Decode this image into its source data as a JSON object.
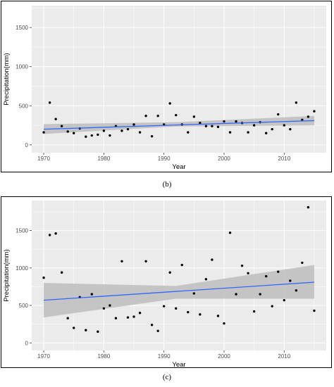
{
  "chart_data": [
    {
      "type": "scatter",
      "caption": "(b)",
      "xlabel": "Year",
      "ylabel": "Precipitation(mm)",
      "xlim": [
        1968,
        2017
      ],
      "ylim": [
        -100,
        1780
      ],
      "xticks": [
        1970,
        1980,
        1990,
        2000,
        2010
      ],
      "yticks": [
        0,
        500,
        1000,
        1500
      ],
      "grid": true,
      "colors": {
        "panel": "#ebebeb",
        "grid": "#ffffff",
        "point": "#000000",
        "line": "#3366ff",
        "band": "#bdbdbd"
      },
      "trend": {
        "x": [
          1970,
          2015
        ],
        "y": [
          200,
          310
        ]
      },
      "band": {
        "x": [
          1970,
          1992,
          2015
        ],
        "lower": [
          140,
          235,
          250
        ],
        "upper": [
          265,
          290,
          370
        ]
      },
      "x": [
        1970,
        1971,
        1972,
        1973,
        1974,
        1975,
        1976,
        1977,
        1978,
        1979,
        1980,
        1981,
        1982,
        1983,
        1984,
        1985,
        1986,
        1987,
        1988,
        1989,
        1990,
        1991,
        1992,
        1993,
        1994,
        1995,
        1996,
        1997,
        1998,
        1999,
        2000,
        2001,
        2002,
        2003,
        2004,
        2005,
        2006,
        2007,
        2008,
        2009,
        2010,
        2011,
        2012,
        2013,
        2014,
        2015
      ],
      "y": [
        160,
        540,
        330,
        240,
        170,
        150,
        210,
        105,
        120,
        130,
        180,
        120,
        240,
        180,
        200,
        260,
        160,
        370,
        110,
        370,
        260,
        530,
        380,
        260,
        160,
        360,
        280,
        240,
        240,
        230,
        300,
        160,
        300,
        280,
        160,
        250,
        290,
        150,
        200,
        390,
        250,
        200,
        540,
        320,
        360,
        430
      ]
    },
    {
      "type": "scatter",
      "caption": "(c)",
      "xlabel": "Year",
      "ylabel": "Precipitation(mm)",
      "xlim": [
        1968,
        2017
      ],
      "ylim": [
        -100,
        1900
      ],
      "xticks": [
        1970,
        1980,
        1990,
        2000,
        2010
      ],
      "yticks": [
        0,
        500,
        1000,
        1500
      ],
      "grid": true,
      "colors": {
        "panel": "#ebebeb",
        "grid": "#ffffff",
        "point": "#000000",
        "line": "#3366ff",
        "band": "#bdbdbd"
      },
      "trend": {
        "x": [
          1970,
          2015
        ],
        "y": [
          570,
          810
        ]
      },
      "band": {
        "x": [
          1970,
          1992,
          2015
        ],
        "lower": [
          340,
          590,
          590
        ],
        "upper": [
          800,
          760,
          1040
        ]
      },
      "x": [
        1970,
        1971,
        1972,
        1973,
        1974,
        1975,
        1976,
        1977,
        1978,
        1979,
        1980,
        1981,
        1982,
        1983,
        1984,
        1985,
        1986,
        1987,
        1988,
        1989,
        1990,
        1991,
        1992,
        1993,
        1994,
        1995,
        1996,
        1997,
        1998,
        1999,
        2000,
        2001,
        2002,
        2003,
        2004,
        2005,
        2006,
        2007,
        2008,
        2009,
        2010,
        2011,
        2012,
        2013,
        2014,
        2015
      ],
      "y": [
        870,
        1440,
        1460,
        940,
        330,
        200,
        610,
        170,
        650,
        150,
        460,
        500,
        330,
        1090,
        340,
        350,
        400,
        1090,
        240,
        160,
        490,
        940,
        460,
        1040,
        410,
        660,
        380,
        850,
        1110,
        360,
        260,
        1470,
        650,
        1030,
        930,
        420,
        650,
        890,
        490,
        950,
        570,
        830,
        700,
        1070,
        1810,
        430
      ]
    }
  ]
}
